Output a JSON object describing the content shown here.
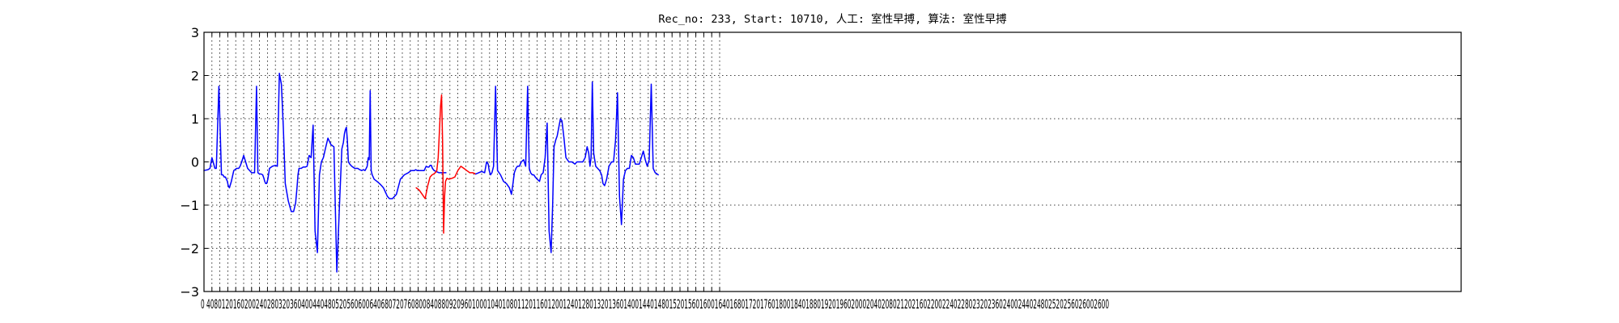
{
  "chart_data": {
    "type": "line",
    "title": "Rec_no: 233, Start: 10710, 人工: 室性早搏, 算法: 室性早搏",
    "xlabel": "",
    "ylabel": "",
    "xlim": [
      0,
      3000
    ],
    "ylim": [
      -3,
      3
    ],
    "grid": true,
    "x_ticks": [
      0,
      40,
      80,
      120,
      160,
      200,
      240,
      280,
      320,
      360,
      400,
      440,
      480,
      520,
      560,
      600,
      640,
      680,
      720,
      760,
      800,
      840,
      880,
      920,
      960,
      1000,
      1040,
      1080,
      1120,
      1160,
      1200,
      1240,
      1280,
      1320,
      1360,
      1400,
      1440,
      1480,
      1520,
      1560,
      1600,
      1640,
      1680,
      1720,
      1760,
      1800,
      1840,
      1880,
      1920,
      1960,
      2000,
      2040,
      2080,
      2120,
      2160,
      2200,
      2240,
      2280,
      2320,
      2360,
      2400,
      2440,
      2480,
      2520,
      2560,
      2600
    ],
    "y_ticks": [
      -3,
      -2,
      -1,
      0,
      1,
      2,
      3
    ],
    "y_tick_labels": [
      "−3",
      "−2",
      "−1",
      "0",
      "1",
      "2",
      "3"
    ],
    "x_tick_labels_text": "0 4080120160200240280320360400440480520560600640680720760800840880920960100010401080112011601200124012801320136014001440148015201560160016401680172017601800184018801920196020002040208021202160220022402280232023602400244024802520256026002600",
    "series": [
      {
        "color": "#0000ff",
        "x": [
          0,
          20,
          30,
          40,
          55,
          62,
          75,
          88,
          95,
          102,
          108,
          113,
          118,
          122,
          128,
          138,
          150,
          165,
          175,
          182,
          190,
          200,
          220,
          240,
          255,
          265,
          272,
          280,
          288,
          296,
          302,
          306,
          311,
          316,
          322,
          330,
          345,
          360,
          370,
          380,
          390,
          400,
          410,
          425,
          440,
          452,
          462,
          469,
          474,
          479,
          484,
          490,
          500,
          510,
          520,
          530,
          540,
          550,
          560,
          572,
          582,
          592,
          602,
          612,
          625,
          640,
          655,
          670,
          685,
          695,
          703,
          708,
          713,
          718,
          723,
          728,
          735,
          745,
          760,
          775,
          785,
          795,
          805,
          812,
          818,
          823,
          828,
          833,
          838,
          843,
          848,
          858,
          872,
          885,
          895,
          905,
          915,
          925,
          935,
          950,
          970,
          990,
          1010,
          1030,
          1045,
          1060,
          1068,
          1075,
          1080,
          1090,
          1100,
          1110,
          1120,
          1128,
          1134,
          1140,
          1146,
          1152,
          1160,
          1170,
          1185,
          1200,
          1212,
          1220
        ],
        "y": [
          -0.2,
          -0.18,
          -0.15,
          0.1,
          -0.15,
          -0.15,
          1.75,
          -0.3,
          -0.3,
          -0.35,
          -0.35,
          -0.4,
          -0.45,
          -0.55,
          -0.6,
          -0.45,
          -0.2,
          -0.15,
          -0.15,
          -0.1,
          0,
          0.15,
          -0.15,
          -0.25,
          -0.25,
          1.75,
          -0.25,
          -0.28,
          -0.28,
          -0.3,
          -0.38,
          -0.45,
          -0.5,
          -0.5,
          -0.4,
          -0.15,
          -0.1,
          -0.08,
          -0.1,
          2.05,
          1.8,
          0.8,
          -0.5,
          -0.9,
          -1.15,
          -1.15,
          -0.95,
          -0.6,
          -0.3,
          -0.15,
          -0.15,
          -0.15,
          -0.12,
          -0.12,
          -0.1,
          0.15,
          0.1,
          0.85,
          -1.6,
          -2.1,
          -0.3,
          0,
          0.1,
          0.3,
          0.55,
          0.4,
          0.35,
          -2.55,
          -0.8,
          0.3,
          0.45,
          0.65,
          0.75,
          0.8,
          0.5,
          0,
          -0.05,
          -0.1,
          -0.15,
          -0.15,
          -0.18,
          -0.2,
          -0.18,
          -0.2,
          -0.15,
          -0.1,
          0.1,
          0.05,
          1.65,
          -0.2,
          -0.3,
          -0.4,
          -0.45,
          -0.5,
          -0.55,
          -0.6,
          -0.7,
          -0.8,
          -0.85,
          -0.85,
          -0.75,
          -0.4,
          -0.3,
          -0.25,
          -0.2,
          -0.2,
          -0.18,
          -0.2,
          -0.2,
          -0.2,
          -0.2,
          -0.2,
          -0.1,
          -0.12,
          -0.12,
          -0.08,
          -0.08,
          -0.15,
          -0.2,
          -0.22,
          -0.25,
          -0.25,
          -0.25,
          -0.25
        ]
      },
      {
        "color": "#ff0000",
        "x": [
          1070,
          1085,
          1100,
          1115,
          1128,
          1140,
          1150,
          1158,
          1166,
          1174,
          1181,
          1187,
          1193,
          1198,
          1203,
          1208,
          1213,
          1218,
          1225,
          1235,
          1250,
          1265,
          1280,
          1295,
          1310,
          1325,
          1340,
          1355,
          1370
        ],
        "y": [
          -0.6,
          -0.65,
          -0.75,
          -0.85,
          -0.55,
          -0.35,
          -0.3,
          -0.28,
          -0.25,
          -0.2,
          0.1,
          0.7,
          1.3,
          1.55,
          0.5,
          -1.65,
          -0.8,
          -0.45,
          -0.38,
          -0.4,
          -0.38,
          -0.35,
          -0.2,
          -0.1,
          -0.15,
          -0.2,
          -0.25,
          -0.25,
          -0.28
        ]
      },
      {
        "color": "#0000ff",
        "x": [
          1370,
          1385,
          1400,
          1415,
          1425,
          1433,
          1438,
          1445,
          1452,
          1460,
          1470,
          1480,
          1495,
          1510,
          1525,
          1540,
          1550,
          1558,
          1565,
          1573,
          1580,
          1590,
          1600,
          1612,
          1622,
          1632,
          1640,
          1647,
          1655,
          1663,
          1670,
          1680,
          1692,
          1700,
          1710,
          1720,
          1730,
          1740,
          1750,
          1758,
          1765,
          1773,
          1781,
          1789,
          1797,
          1805,
          1815,
          1825,
          1840,
          1855,
          1870,
          1880,
          1895,
          1910,
          1922,
          1932,
          1940,
          1946,
          1952,
          1958,
          1965,
          1975,
          1985,
          1995,
          2005,
          2012,
          2020,
          2030,
          2042,
          2055,
          2065,
          2075,
          2085,
          2095,
          2105,
          2115,
          2125,
          2135,
          2145,
          2155,
          2165,
          2175,
          2185,
          2195,
          2205,
          2215,
          2225,
          2235,
          2245,
          2255,
          2265,
          2275,
          2285,
          2290
        ],
        "y": [
          -0.28,
          -0.25,
          -0.22,
          -0.25,
          0,
          -0.05,
          -0.2,
          -0.3,
          -0.25,
          -0.1,
          1.75,
          -0.2,
          -0.3,
          -0.45,
          -0.5,
          -0.6,
          -0.75,
          -0.5,
          -0.25,
          -0.15,
          -0.1,
          -0.1,
          0,
          0.05,
          -0.1,
          1.75,
          -0.15,
          -0.25,
          -0.3,
          -0.3,
          -0.35,
          -0.4,
          -0.45,
          -0.3,
          -0.25,
          0.1,
          0.9,
          -1.6,
          -2.1,
          -1.0,
          0.35,
          0.5,
          0.6,
          0.8,
          1.0,
          0.95,
          0.55,
          0.1,
          0,
          0,
          -0.05,
          0,
          0,
          0,
          0.1,
          0.35,
          0.2,
          -0.1,
          0.1,
          1.85,
          0.2,
          -0.1,
          -0.15,
          -0.2,
          -0.3,
          -0.5,
          -0.55,
          -0.4,
          -0.1,
          0,
          0,
          0.5,
          1.6,
          -0.8,
          -1.45,
          -0.4,
          -0.2,
          -0.15,
          -0.15,
          0.15,
          0.1,
          -0.05,
          -0.05,
          -0.05,
          0.1,
          0.25,
          0.05,
          -0.1,
          0.05,
          1.8,
          -0.15,
          -0.25,
          -0.28,
          -0.3
        ]
      }
    ]
  }
}
